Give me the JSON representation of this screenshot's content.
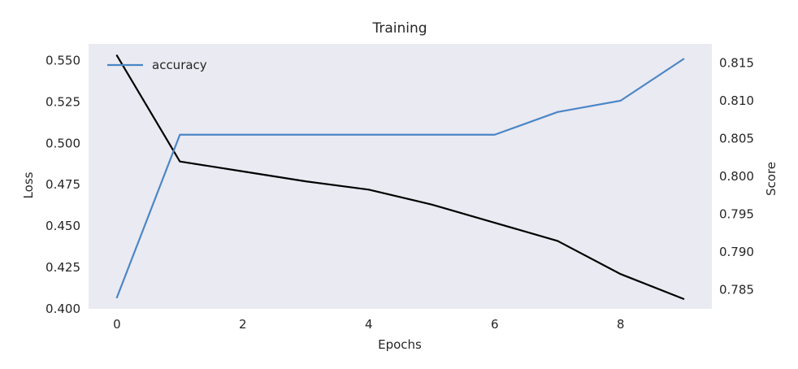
{
  "chart_data": {
    "type": "line",
    "title": "Training",
    "xlabel": "Epochs",
    "ylabel_left": "Loss",
    "ylabel_right": "Score",
    "x": [
      0,
      1,
      2,
      3,
      4,
      5,
      6,
      7,
      8,
      9
    ],
    "x_ticks": [
      0,
      2,
      4,
      6,
      8
    ],
    "x_tick_labels": [
      "0",
      "2",
      "4",
      "6",
      "8"
    ],
    "xlim": [
      -0.45,
      9.45
    ],
    "ylim_left": [
      0.4,
      0.56
    ],
    "ylim_right": [
      0.7825,
      0.8175
    ],
    "y_ticks_left": [
      0.4,
      0.425,
      0.45,
      0.475,
      0.5,
      0.525,
      0.55
    ],
    "y_tick_labels_left": [
      "0.400",
      "0.425",
      "0.450",
      "0.475",
      "0.500",
      "0.525",
      "0.550"
    ],
    "y_ticks_right": [
      0.785,
      0.79,
      0.795,
      0.8,
      0.805,
      0.81,
      0.815
    ],
    "y_tick_labels_right": [
      "0.785",
      "0.790",
      "0.795",
      "0.800",
      "0.805",
      "0.810",
      "0.815"
    ],
    "grid": false,
    "legend_position": "upper-left",
    "series": [
      {
        "name": "",
        "axis": "left",
        "color": "#000000",
        "values": [
          0.553,
          0.489,
          0.483,
          0.477,
          0.472,
          0.463,
          0.452,
          0.441,
          0.421,
          0.406
        ]
      },
      {
        "name": "accuracy",
        "axis": "right",
        "color": "#4c86c6",
        "values": [
          0.784,
          0.8055,
          0.8055,
          0.8055,
          0.8055,
          0.8055,
          0.8055,
          0.8085,
          0.81,
          0.8155
        ]
      }
    ],
    "colors": {
      "plot_background": "#eaeaf2",
      "right_label": "#4c86c6",
      "text": "#262626"
    }
  }
}
